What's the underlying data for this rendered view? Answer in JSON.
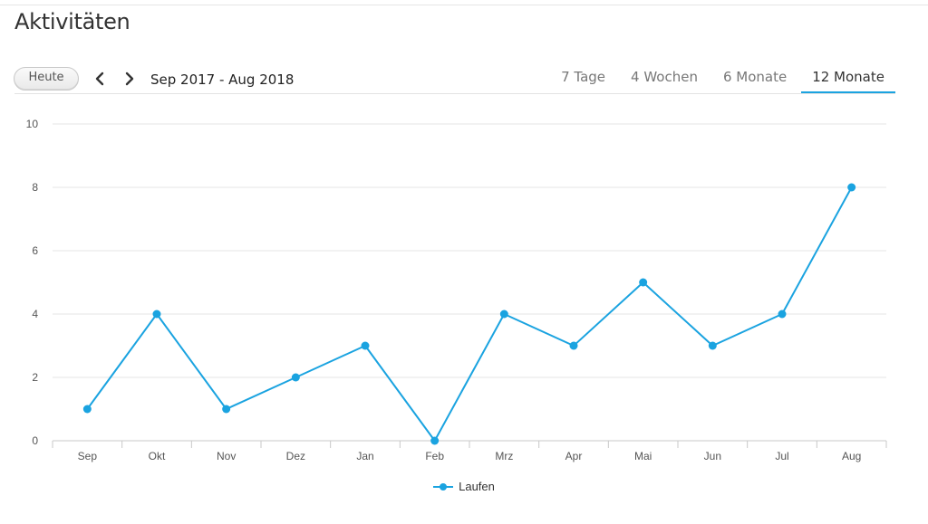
{
  "header": {
    "title": "Aktivitäten"
  },
  "toolbar": {
    "today_label": "Heute",
    "range_label": "Sep 2017 - Aug 2018",
    "tabs": [
      {
        "label": "7 Tage",
        "active": false
      },
      {
        "label": "4 Wochen",
        "active": false
      },
      {
        "label": "6 Monate",
        "active": false
      },
      {
        "label": "12 Monate",
        "active": true
      }
    ]
  },
  "icons": {
    "prev": "chevron-left-icon",
    "next": "chevron-right-icon"
  },
  "colors": {
    "accent": "#1aa3e0",
    "series": "#1aa3e0"
  },
  "chart_data": {
    "type": "line",
    "categories": [
      "Sep",
      "Okt",
      "Nov",
      "Dez",
      "Jan",
      "Feb",
      "Mrz",
      "Apr",
      "Mai",
      "Jun",
      "Jul",
      "Aug"
    ],
    "series": [
      {
        "name": "Laufen",
        "values": [
          1,
          4,
          1,
          2,
          3,
          0,
          4,
          3,
          5,
          3,
          4,
          8
        ]
      }
    ],
    "yticks": [
      "0",
      "2",
      "4",
      "6",
      "8",
      "10"
    ],
    "ylim": [
      0,
      10
    ],
    "grid": true,
    "legend": "bottom-center"
  }
}
